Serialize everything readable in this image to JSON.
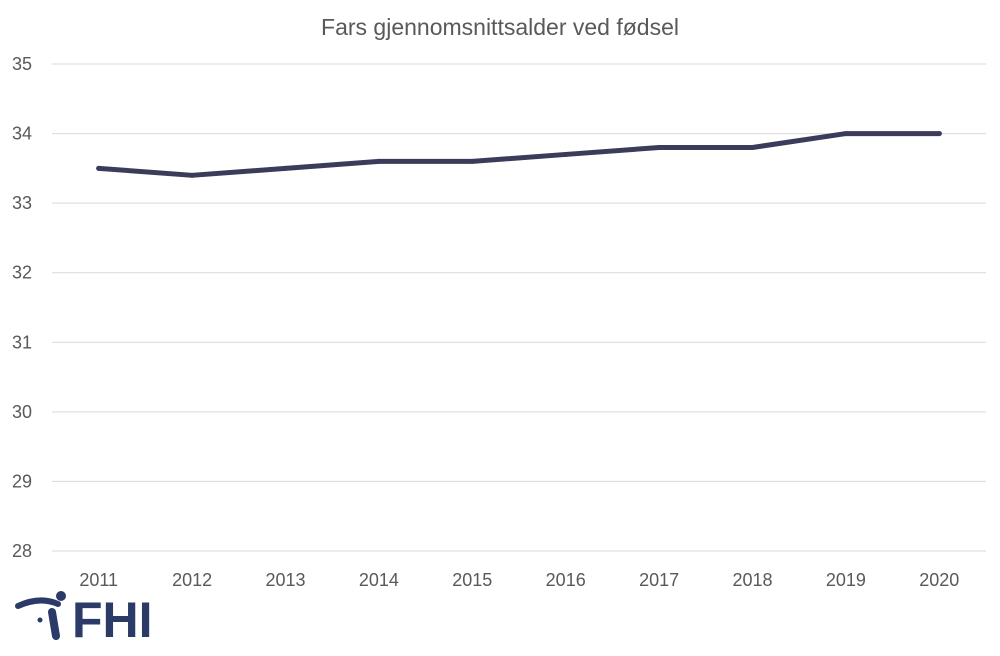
{
  "chart_data": {
    "type": "line",
    "title": "Fars gjennomsnittsalder ved fødsel",
    "xlabel": "",
    "ylabel": "",
    "categories": [
      "2011",
      "2012",
      "2013",
      "2014",
      "2015",
      "2016",
      "2017",
      "2018",
      "2019",
      "2020"
    ],
    "series": [
      {
        "values": [
          33.5,
          33.4,
          33.5,
          33.6,
          33.6,
          33.7,
          33.8,
          33.8,
          34.0,
          34.0
        ],
        "color": "#3b3b5c"
      }
    ],
    "ylim": [
      28,
      35
    ],
    "yticks": [
      28,
      29,
      30,
      31,
      32,
      33,
      34,
      35
    ],
    "grid": true,
    "legend": "none"
  },
  "logo": {
    "text": "FHI",
    "icon": "fhi-logo-icon",
    "color": "#2b3a67"
  }
}
